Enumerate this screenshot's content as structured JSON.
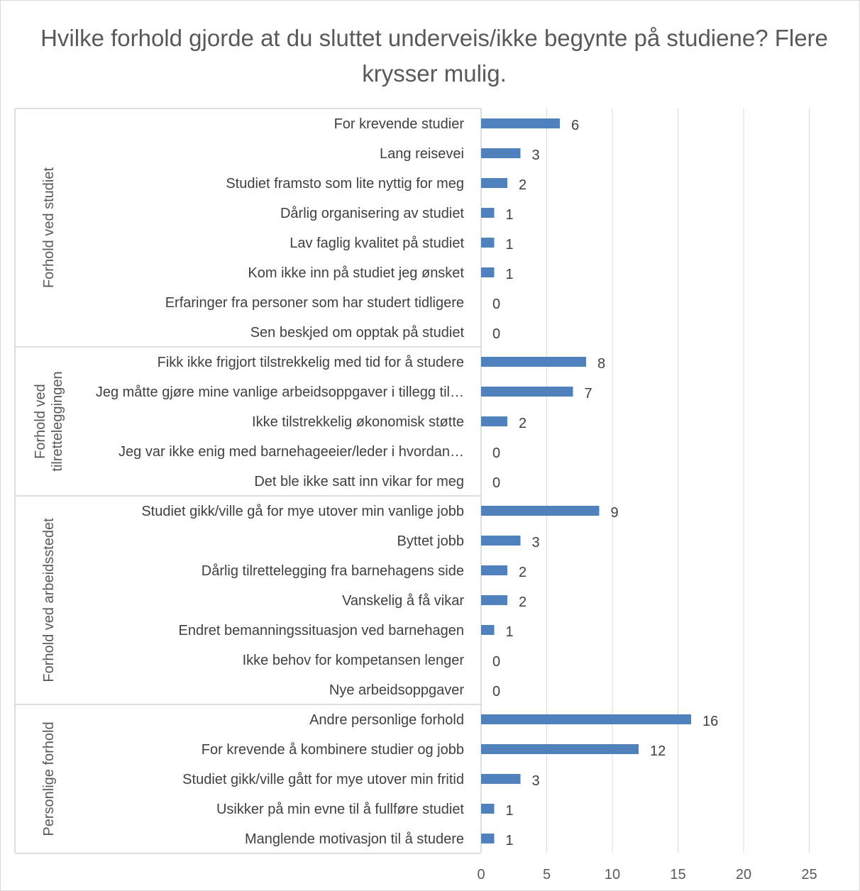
{
  "chart_data": {
    "type": "bar",
    "orientation": "horizontal",
    "title": "Hvilke forhold gjorde at du sluttet underveis/ikke begynte på studiene? Flere krysser mulig.",
    "xlim": [
      0,
      25
    ],
    "xticks": [
      0,
      5,
      10,
      15,
      20,
      25
    ],
    "grid": true,
    "bar_color": "#4f81bd",
    "groups": [
      {
        "name": "Forhold ved studiet",
        "categories": [
          "For krevende studier",
          "Lang reisevei",
          "Studiet framsto som lite nyttig for meg",
          "Dårlig organisering av studiet",
          "Lav faglig kvalitet på studiet",
          "Kom ikke inn på studiet jeg ønsket",
          "Erfaringer fra personer som har studert tidligere",
          "Sen beskjed om opptak på studiet"
        ],
        "values": [
          6,
          3,
          2,
          1,
          1,
          1,
          0,
          0
        ]
      },
      {
        "name": "Forhold ved tilretteleggingen",
        "name_lines": [
          "Forhold ved",
          "tilretteleggingen"
        ],
        "categories": [
          "Fikk ikke frigjort tilstrekkelig med tid for å studere",
          "Jeg måtte gjøre mine vanlige arbeidsoppgaver i tillegg til…",
          "Ikke tilstrekkelig økonomisk støtte",
          "Jeg var ikke enig med barnehageeier/leder i hvordan…",
          "Det ble ikke satt inn vikar for meg"
        ],
        "values": [
          8,
          7,
          2,
          0,
          0
        ]
      },
      {
        "name": "Forhold ved arbeidsstedet",
        "categories": [
          "Studiet gikk/ville gå for mye utover min vanlige jobb",
          "Byttet jobb",
          "Dårlig tilrettelegging fra barnehagens side",
          "Vanskelig å få vikar",
          "Endret bemanningssituasjon ved barnehagen",
          "Ikke behov for kompetansen lenger",
          "Nye arbeidsoppgaver"
        ],
        "values": [
          9,
          3,
          2,
          2,
          1,
          0,
          0
        ]
      },
      {
        "name": "Personlige forhold",
        "categories": [
          "Andre personlige forhold",
          "For krevende å kombinere studier og jobb",
          "Studiet gikk/ville gått for mye utover min fritid",
          "Usikker på min evne til å fullføre studiet",
          "Manglende motivasjon til å studere"
        ],
        "values": [
          16,
          12,
          3,
          1,
          1
        ]
      }
    ]
  }
}
